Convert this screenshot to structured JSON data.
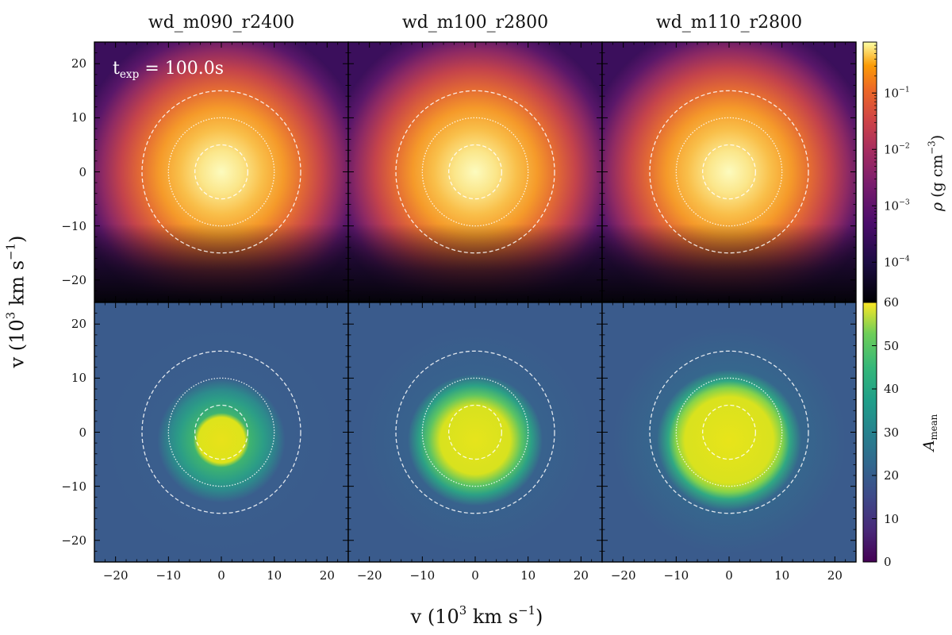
{
  "chart_data": {
    "type": "heatmap",
    "panel_titles": [
      "wd_m090_r2400",
      "wd_m100_r2800",
      "wd_m110_r2800"
    ],
    "annotation": {
      "prefix": "t",
      "subscript": "exp",
      "value": "100.0s",
      "equals": "="
    },
    "xlabel": {
      "text": "v (10",
      "sup": "3",
      "unit": " km s",
      "unit_sup": "−1",
      "close": ")"
    },
    "ylabel": {
      "text": "v (10",
      "sup": "3",
      "unit": " km s",
      "unit_sup": "−1",
      "close": ")"
    },
    "xlim": [
      -24,
      24
    ],
    "ylim": [
      -24,
      24
    ],
    "x_ticks": [
      -20,
      -10,
      0,
      10,
      20
    ],
    "y_ticks": [
      -20,
      -10,
      0,
      10,
      20
    ],
    "tick_labels": [
      "−20",
      "−10",
      "0",
      "10",
      "20"
    ],
    "reference_circles_kms_1e3": [
      5,
      10,
      15
    ],
    "rows": [
      {
        "quantity": "density",
        "colormap": "inferno",
        "scale": "log",
        "colorbar_label": {
          "symbol": "ρ",
          "text": " (g cm",
          "sup": "−3",
          "close": ")"
        },
        "colorbar_range": [
          2e-05,
          0.8
        ],
        "colorbar_ticks": [
          {
            "value": 0.1,
            "mantissa": "10",
            "exp": "−1"
          },
          {
            "value": 0.01,
            "mantissa": "10",
            "exp": "−2"
          },
          {
            "value": 0.001,
            "mantissa": "10",
            "exp": "−3"
          },
          {
            "value": 0.0001,
            "mantissa": "10",
            "exp": "−4"
          }
        ]
      },
      {
        "quantity": "mean atomic mass",
        "colormap": "viridis",
        "scale": "linear",
        "colorbar_label": {
          "symbol": "A",
          "sub": "mean"
        },
        "colorbar_range": [
          0,
          60
        ],
        "colorbar_ticks": [
          0,
          10,
          20,
          30,
          40,
          50,
          60
        ]
      }
    ]
  }
}
